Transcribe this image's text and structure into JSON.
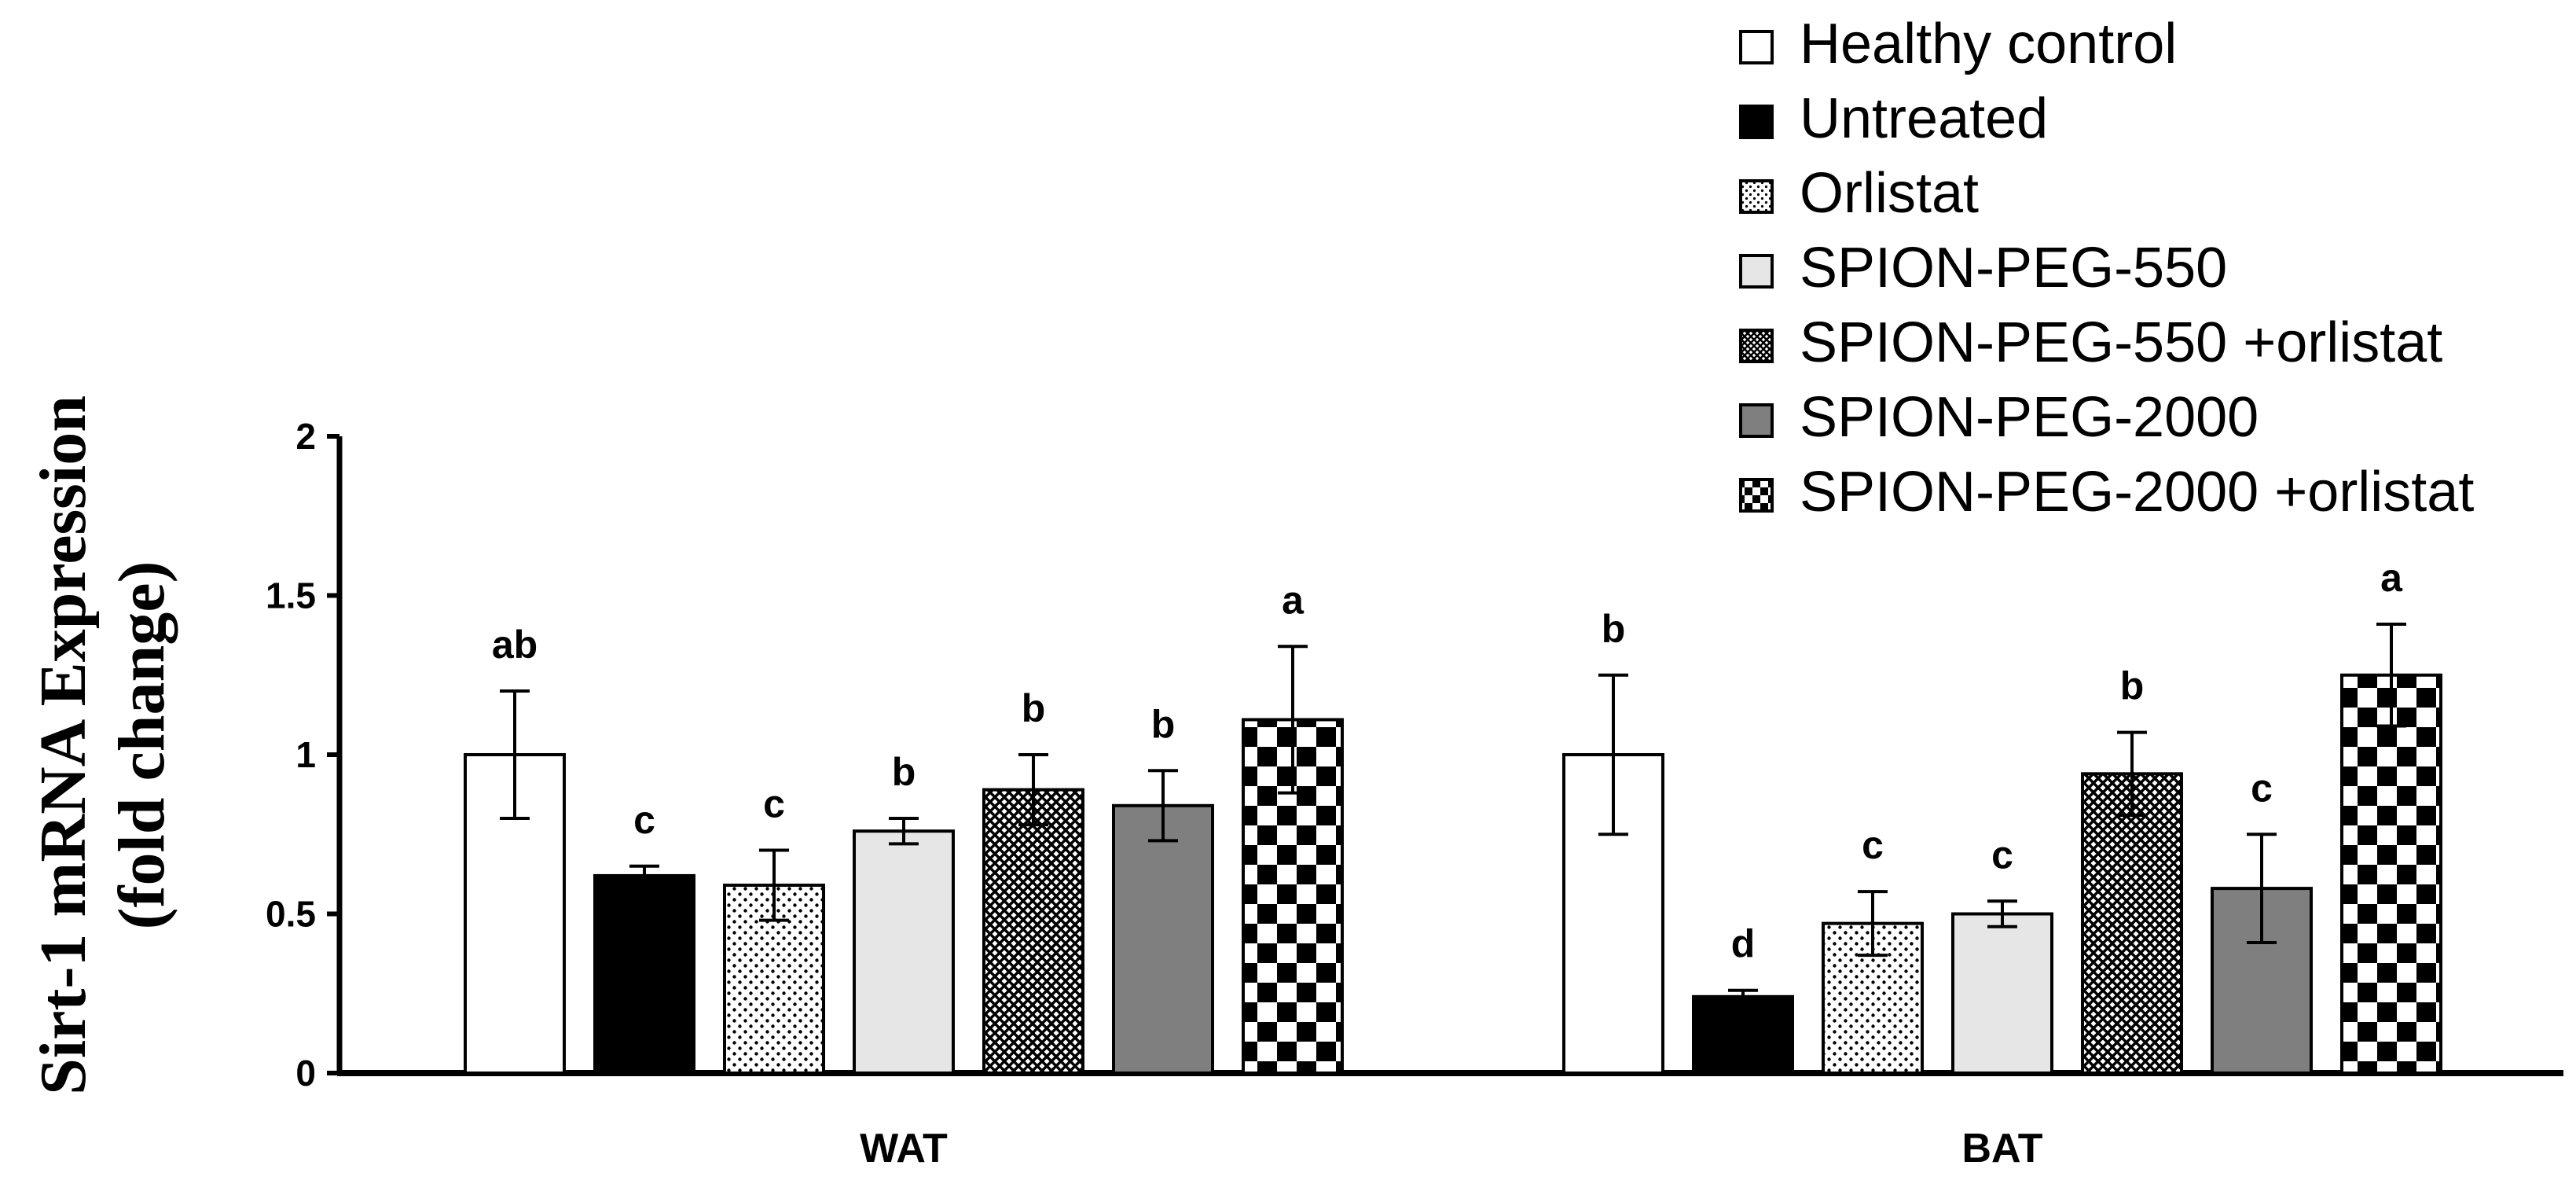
{
  "chart_data": {
    "type": "bar",
    "title": "",
    "xlabel": "",
    "ylabel_line1": "Sirt-1 mRNA Expression",
    "ylabel_line2": "(fold change)",
    "ylim": [
      0,
      2
    ],
    "yticks": [
      0,
      0.5,
      1,
      1.5,
      2
    ],
    "ytick_labels": [
      "0",
      "0.5",
      "1",
      "1.5",
      "2"
    ],
    "categories": [
      "WAT",
      "BAT"
    ],
    "legend_position": "top-right",
    "series": [
      {
        "name": "Healthy control",
        "pattern": "white",
        "values": [
          1.0,
          1.0
        ],
        "errors": [
          0.2,
          0.25
        ],
        "letters": [
          "ab",
          "b"
        ]
      },
      {
        "name": "Untreated",
        "pattern": "black",
        "values": [
          0.62,
          0.24
        ],
        "errors": [
          0.03,
          0.02
        ],
        "letters": [
          "c",
          "d"
        ]
      },
      {
        "name": "Orlistat",
        "pattern": "dots",
        "values": [
          0.59,
          0.47
        ],
        "errors": [
          0.11,
          0.1
        ],
        "letters": [
          "c",
          "c"
        ]
      },
      {
        "name": "SPION-PEG-550",
        "pattern": "lightgray",
        "values": [
          0.76,
          0.5
        ],
        "errors": [
          0.04,
          0.04
        ],
        "letters": [
          "b",
          "c"
        ]
      },
      {
        "name": "SPION-PEG-550 +orlistat",
        "pattern": "crosshatch",
        "values": [
          0.89,
          0.94
        ],
        "errors": [
          0.11,
          0.13
        ],
        "letters": [
          "b",
          "b"
        ]
      },
      {
        "name": "SPION-PEG-2000",
        "pattern": "darkgray",
        "values": [
          0.84,
          0.58
        ],
        "errors": [
          0.11,
          0.17
        ],
        "letters": [
          "b",
          "c"
        ]
      },
      {
        "name": "SPION-PEG-2000 +orlistat",
        "pattern": "checker",
        "values": [
          1.11,
          1.25
        ],
        "errors": [
          0.23,
          0.16
        ],
        "letters": [
          "a",
          "a"
        ]
      }
    ]
  }
}
